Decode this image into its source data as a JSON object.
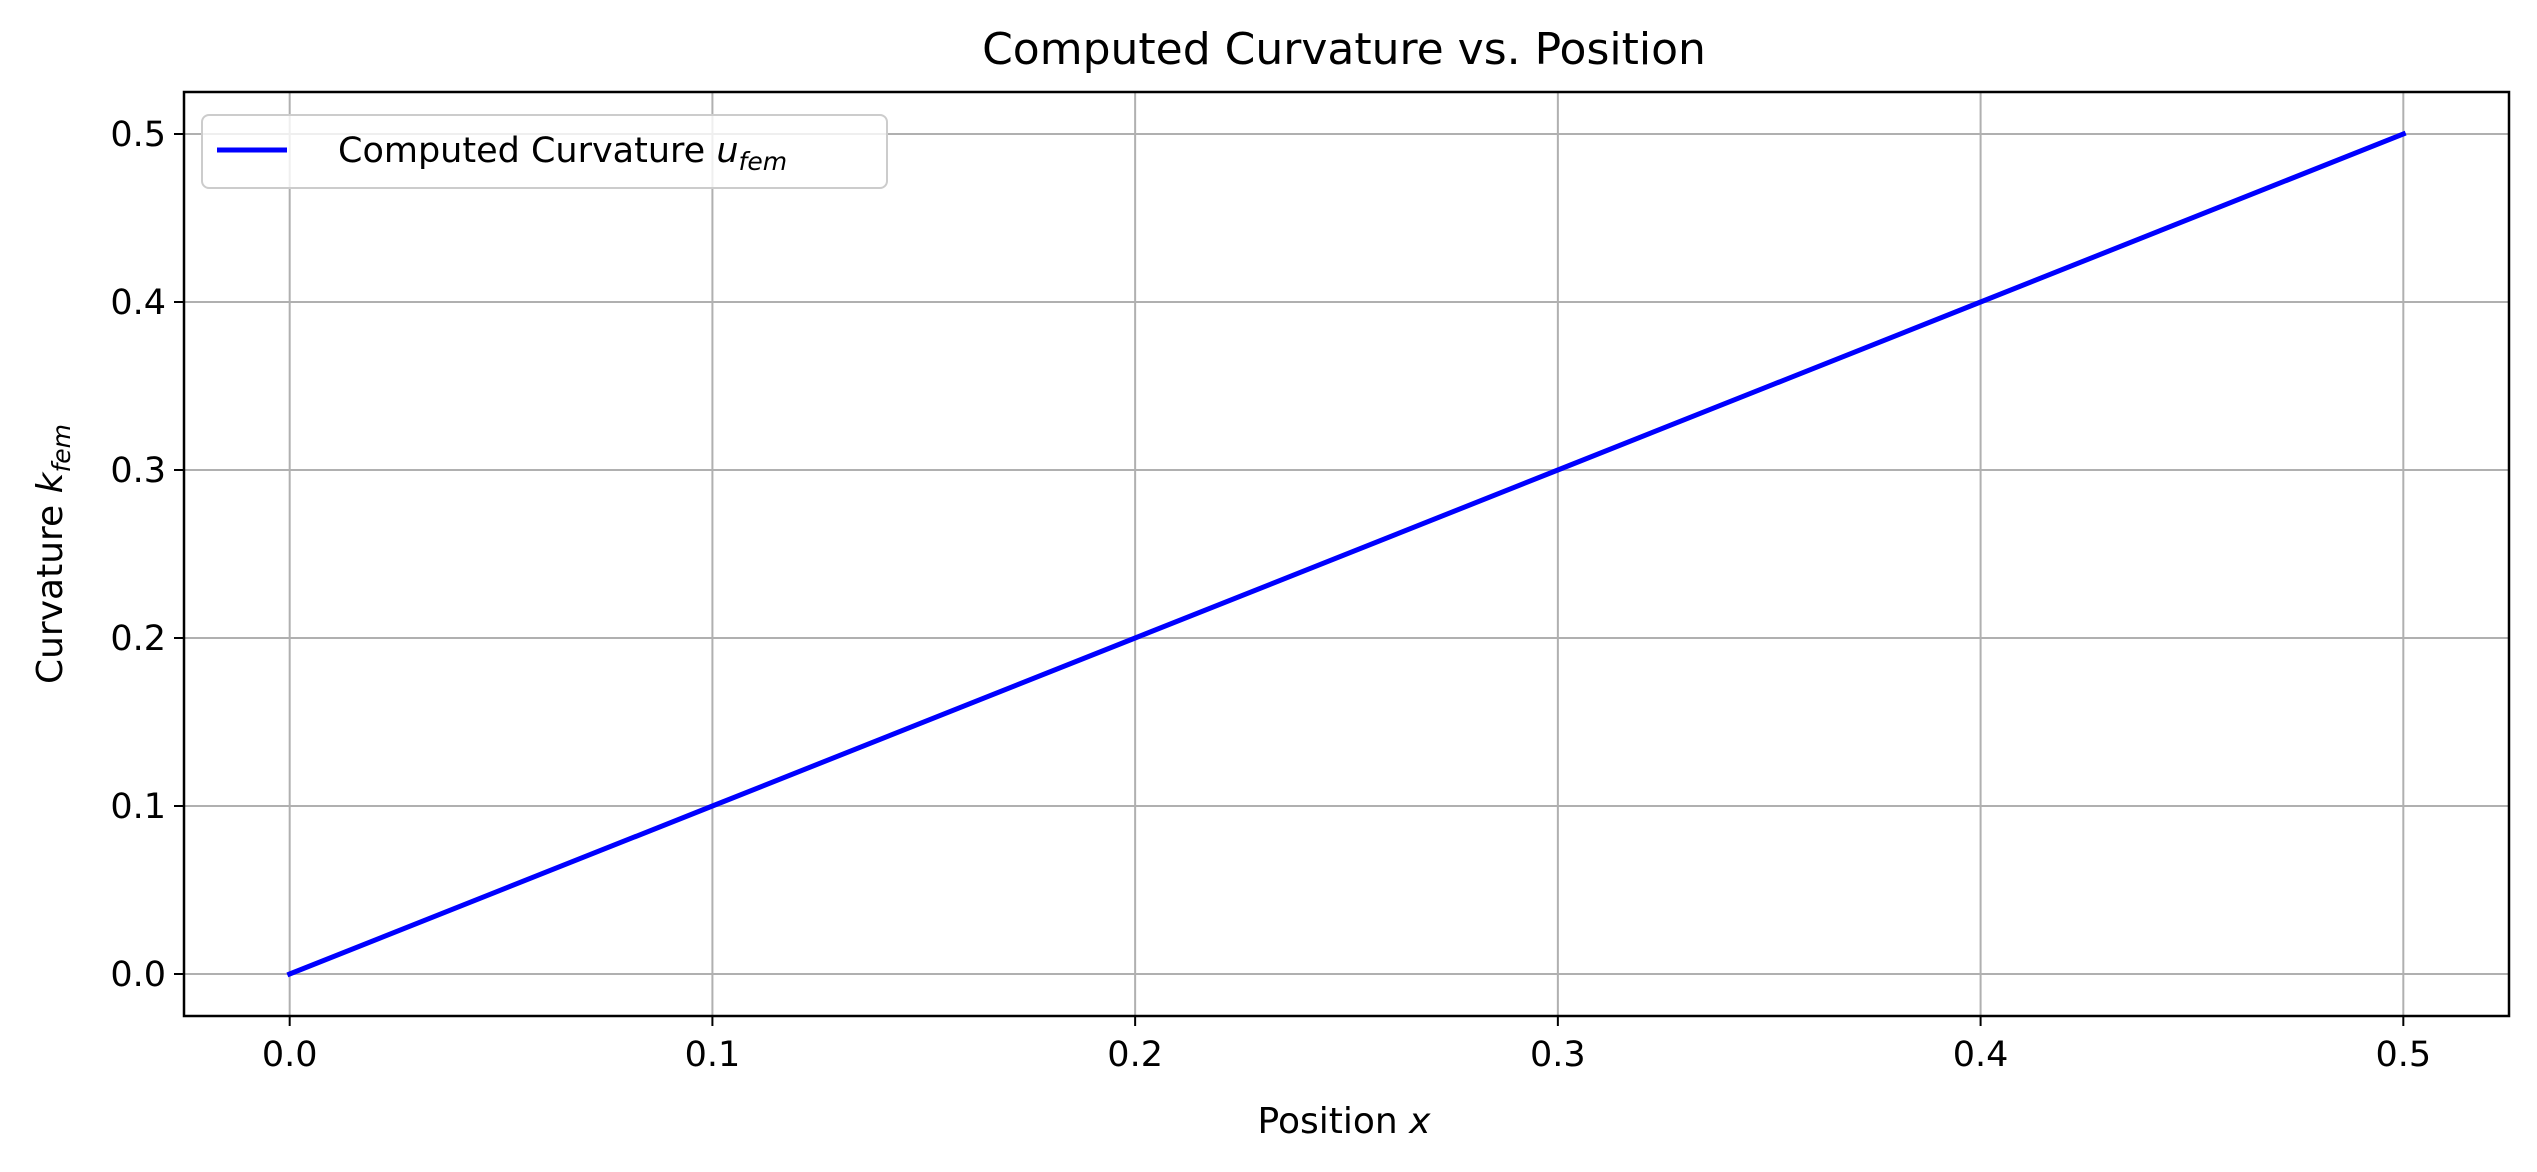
{
  "chart_data": {
    "type": "line",
    "title": "Computed Curvature vs. Position",
    "xlabel": "Position",
    "xlabel_var": "x",
    "ylabel": "Curvature",
    "ylabel_var": "k",
    "ylabel_sub": "fem",
    "x": [
      0.0,
      0.1,
      0.2,
      0.3,
      0.4,
      0.5
    ],
    "series": [
      {
        "name": "Computed Curvature",
        "name_var": "u",
        "name_sub": "fem",
        "color": "#0000ff",
        "values": [
          0.0,
          0.1,
          0.2,
          0.3,
          0.4,
          0.5
        ]
      }
    ],
    "xlim": [
      -0.025,
      0.525
    ],
    "ylim": [
      -0.025,
      0.525
    ],
    "xticks": [
      0.0,
      0.1,
      0.2,
      0.3,
      0.4,
      0.5
    ],
    "yticks": [
      0.0,
      0.1,
      0.2,
      0.3,
      0.4,
      0.5
    ],
    "xtick_labels": [
      "0.0",
      "0.1",
      "0.2",
      "0.3",
      "0.4",
      "0.5"
    ],
    "ytick_labels": [
      "0.0",
      "0.1",
      "0.2",
      "0.3",
      "0.4",
      "0.5"
    ],
    "grid": true,
    "legend_position": "top-left",
    "grid_color": "#b0b0b0"
  }
}
